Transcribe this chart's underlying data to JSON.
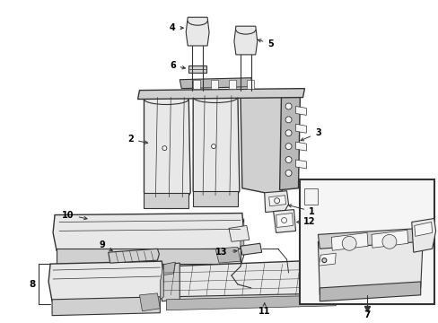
{
  "background_color": "#ffffff",
  "line_color": "#333333",
  "label_color": "#000000",
  "figsize": [
    4.89,
    3.6
  ],
  "dpi": 100,
  "fill_light": "#e8e8e8",
  "fill_mid": "#d0d0d0",
  "fill_dark": "#b8b8b8",
  "fill_white": "#f5f5f5"
}
